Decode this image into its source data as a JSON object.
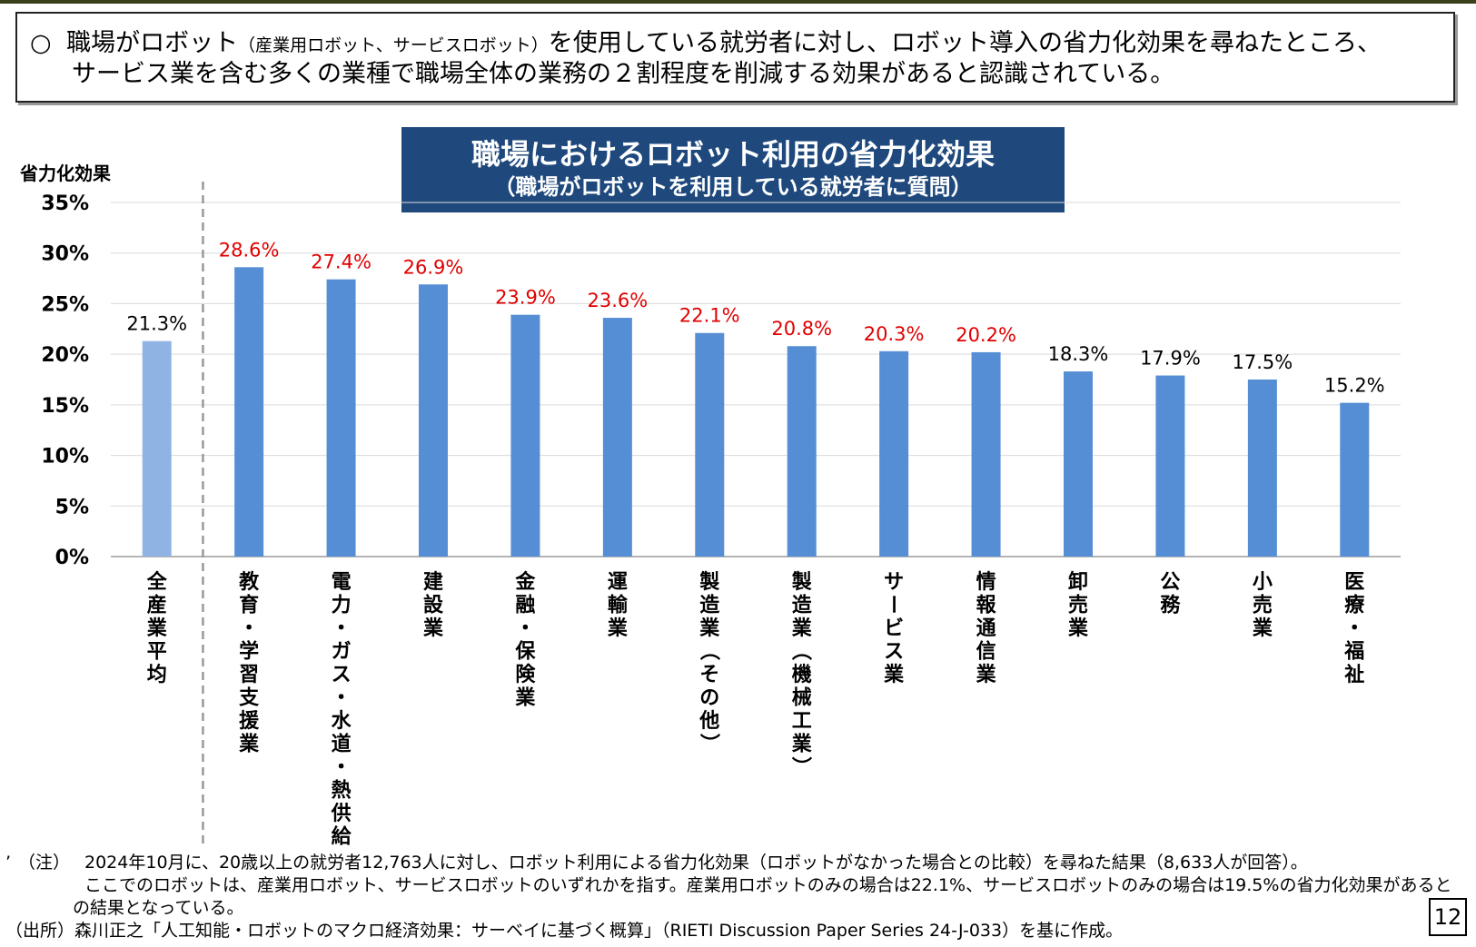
{
  "summary": {
    "bullet": "○",
    "line1_a": "職場がロボット",
    "line1_small": "（産業用ロボット、サービスロボット）",
    "line1_b": "を使用している就労者に対し、ロボット導入の省力化効果を尋ねたところ、",
    "line2": "サービス業を含む多くの業種で職場全体の業務の２割程度を削減する効果があると認識されている。"
  },
  "chart_data": {
    "type": "bar",
    "title": "職場におけるロボット利用の省力化効果",
    "subtitle": "（職場がロボットを利用している就労者に質問）",
    "ylabel": "省力化効果",
    "xlabel": "",
    "ylim": [
      0,
      35
    ],
    "yticks": [
      "0%",
      "5%",
      "10%",
      "15%",
      "20%",
      "25%",
      "30%",
      "35%"
    ],
    "grid": true,
    "categories": [
      "全産業平均",
      "教育・学習支援業",
      "電力・ガス・水道・熱供給",
      "建設業",
      "金融・保険業",
      "運輸業",
      "製造業（その他）",
      "製造業（機械工業）",
      "サービス業",
      "情報通信業",
      "卸売業",
      "公務",
      "小売業",
      "医療・福祉"
    ],
    "values": [
      21.3,
      28.6,
      27.4,
      26.9,
      23.9,
      23.6,
      22.1,
      20.8,
      20.3,
      20.2,
      18.3,
      17.9,
      17.5,
      15.2
    ],
    "value_labels": [
      "21.3%",
      "28.6%",
      "27.4%",
      "26.9%",
      "23.9%",
      "23.6%",
      "22.1%",
      "20.8%",
      "20.3%",
      "20.2%",
      "18.3%",
      "17.9%",
      "17.5%",
      "15.2%"
    ],
    "colors": {
      "average_bar": "#8fb4e3",
      "bar": "#558ed5",
      "highlight_label": "#e00000",
      "normal_label": "#000000",
      "gridline": "#d9d9d9",
      "separator": "#999999"
    },
    "highlight_threshold": 20
  },
  "footnotes": {
    "marker": "’",
    "note_label": "（注）",
    "note_line1": "2024年10月に、20歳以上の就労者12,763人に対し、ロボット利用による省力化効果（ロボットがなかった場合との比較）を尋ねた結果（8,633人が回答）。",
    "note_line2": "ここでのロボットは、産業用ロボット、サービスロボットのいずれかを指す。産業用ロボットのみの場合は22.1%、サービスロボットのみの場合は19.5%の省力化効果があると",
    "note_line3": "の結果となっている。",
    "source": "（出所）森川正之「人工知能・ロボットのマクロ経済効果：サーベイに基づく概算」（RIETI Discussion Paper Series 24-J-033）を基に作成。"
  },
  "page_number": "12"
}
